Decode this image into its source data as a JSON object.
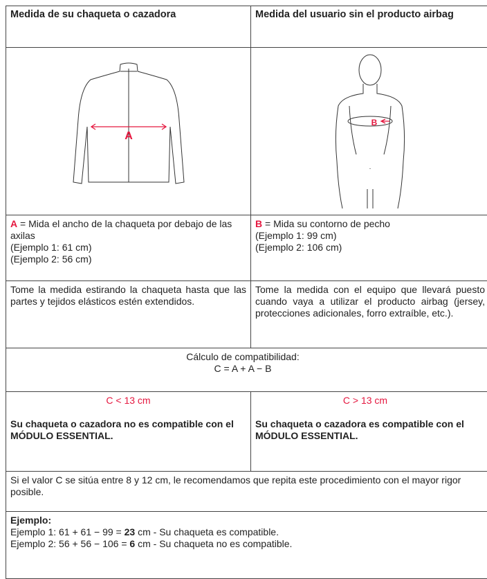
{
  "header": [
    "Medida de su chaqueta o cazadora",
    "Medida del usuario sin el producto airbag"
  ],
  "figures": [
    "A",
    "B"
  ],
  "measures": [
    {
      "letter": "A",
      "text": "= Mida el ancho de la chaqueta por debajo de las axilas",
      "examples": [
        "(Ejemplo 1: 61 cm)",
        "(Ejemplo 2: 56 cm)"
      ]
    },
    {
      "letter": "B",
      "text": "= Mida su contorno de pecho",
      "examples": [
        "(Ejemplo 1: 99 cm)",
        "(Ejemplo 2: 106 cm)"
      ]
    }
  ],
  "instructions": [
    "Tome la medida estirando la chaqueta hasta que las partes y tejidos elásticos estén extendidos.",
    "Tome la medida con el equipo que llevará puesto cuando vaya a utilizar el producto airbag (jersey, protecciones adicionales, forro extraíble, etc.)."
  ],
  "calculation": {
    "title": "Cálculo de compatibilidad:",
    "formula": "C = A + A − B"
  },
  "results": [
    {
      "condition": "C < 13 cm",
      "verdict": "Su chaqueta o cazadora no es compatible con el MÓDULO ESSENTIAL."
    },
    {
      "condition": "C > 13 cm",
      "verdict": "Su chaqueta o cazadora es compatible con el MÓDULO ESSENTIAL."
    }
  ],
  "note": "Si el valor C se sitúa entre 8 y 12 cm, le recomendamos que repita este procedimiento con el mayor rigor posible.",
  "example": {
    "heading": "Ejemplo:",
    "lines": [
      {
        "before": "Ejemplo 1: 61 + 61 − 99 =",
        "result": "23",
        "after": "cm - Su chaqueta es compatible."
      },
      {
        "before": "Ejemplo 2: 56 + 56 − 106 =",
        "result": "6",
        "after": "cm - Su chaqueta no es compatible."
      }
    ]
  }
}
